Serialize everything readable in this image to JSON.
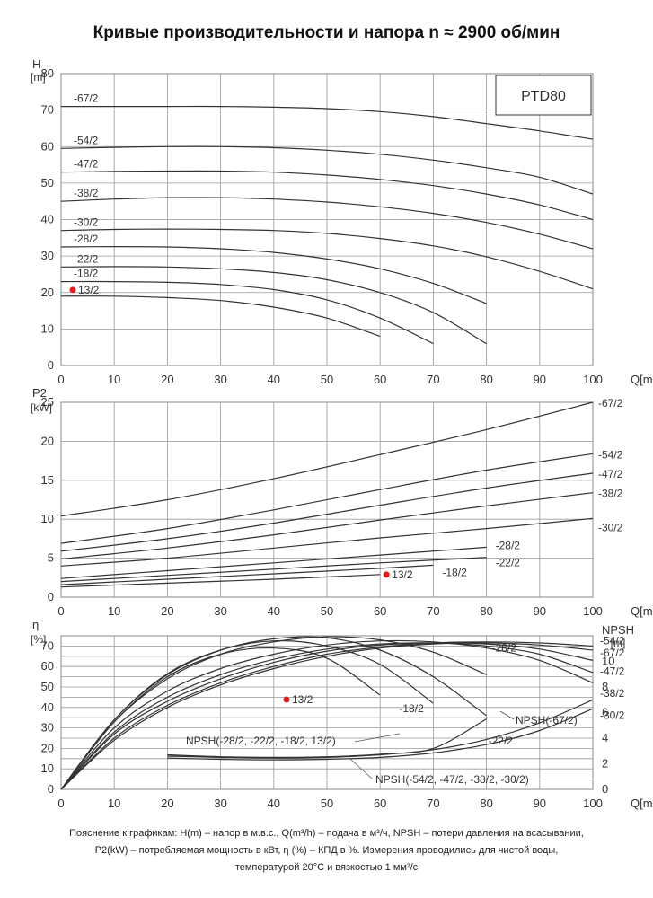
{
  "page": {
    "title": "Кривые производительности и напора n ≈ 2900 об/мин",
    "caption_line1": "Пояснение к графикам: H(m) – напор в м.в.с., Q(m³/h) – подача в м³/ч, NPSH – потери давления на всасывании,",
    "caption_line2": "P2(kW) – потребляемая мощность в кВт, η (%) – КПД в %. Измерения проводились для чистой воды,",
    "caption_line3": "температурой 20°C и вязкостью 1 мм²/с"
  },
  "colors": {
    "curve": "#333333",
    "grid": "#999999",
    "marker": "#e02020"
  },
  "chart_data": [
    {
      "type": "line",
      "id": "head",
      "model_box": "PTD80",
      "ylabel_line1": "H",
      "ylabel_line2": "[m]",
      "xlabel": "Q[m³/h]",
      "xlim": [
        0,
        100
      ],
      "ylim": [
        0,
        80
      ],
      "xticks": [
        0,
        10,
        20,
        30,
        40,
        50,
        60,
        70,
        80,
        90,
        100
      ],
      "yticks": [
        0,
        10,
        20,
        30,
        40,
        50,
        60,
        70,
        80
      ],
      "grid": true,
      "series": [
        {
          "name": "-67/2",
          "x": [
            0,
            10,
            20,
            30,
            40,
            50,
            60,
            70,
            80,
            90,
            100
          ],
          "y": [
            71,
            71,
            71,
            71,
            70.8,
            70.4,
            69.6,
            68.2,
            66.3,
            64.3,
            62
          ]
        },
        {
          "name": "-54/2",
          "x": [
            0,
            10,
            20,
            30,
            40,
            50,
            60,
            70,
            80,
            90,
            100
          ],
          "y": [
            59.5,
            59.8,
            60,
            60,
            59.7,
            59,
            57.9,
            56.3,
            54.2,
            51.6,
            47
          ]
        },
        {
          "name": "-47/2",
          "x": [
            0,
            10,
            20,
            30,
            40,
            50,
            60,
            70,
            80,
            90,
            100
          ],
          "y": [
            53,
            53.2,
            53.3,
            53.3,
            53,
            52.2,
            51,
            49.3,
            47,
            44,
            40
          ]
        },
        {
          "name": "-38/2",
          "x": [
            0,
            10,
            20,
            30,
            40,
            50,
            60,
            70,
            80,
            90,
            100
          ],
          "y": [
            45,
            45.6,
            46,
            46,
            45.6,
            44.8,
            43.5,
            41.7,
            39.2,
            36,
            32
          ]
        },
        {
          "name": "-30/2",
          "x": [
            0,
            10,
            20,
            30,
            40,
            50,
            60,
            70,
            80,
            90,
            100
          ],
          "y": [
            37,
            37.3,
            37.4,
            37.3,
            37,
            36.2,
            34.8,
            32.8,
            29.8,
            25.8,
            21
          ]
        },
        {
          "name": "-28/2",
          "x": [
            0,
            10,
            20,
            30,
            40,
            50,
            60,
            70,
            80
          ],
          "y": [
            32.5,
            32.6,
            32.5,
            32,
            31,
            29.2,
            26.5,
            22.5,
            17
          ]
        },
        {
          "name": "-22/2",
          "x": [
            0,
            10,
            20,
            30,
            40,
            50,
            60,
            70,
            80
          ],
          "y": [
            27,
            27.1,
            27,
            26.5,
            25.5,
            23.5,
            20,
            14.5,
            6
          ]
        },
        {
          "name": "-18/2",
          "x": [
            0,
            10,
            20,
            30,
            40,
            50,
            60,
            70
          ],
          "y": [
            23,
            23,
            22.8,
            22.2,
            20.8,
            18,
            13,
            6
          ]
        },
        {
          "name": "13/2",
          "x": [
            0,
            10,
            20,
            30,
            40,
            50,
            60
          ],
          "y": [
            19,
            19,
            18.6,
            17.8,
            16,
            13,
            8
          ]
        }
      ]
    },
    {
      "type": "line",
      "id": "power",
      "ylabel_line1": "P2",
      "ylabel_line2": "[kW]",
      "xlabel": "Q[m³/h]",
      "xlim": [
        0,
        100
      ],
      "ylim": [
        0,
        25
      ],
      "xticks": [
        0,
        10,
        20,
        30,
        40,
        50,
        60,
        70,
        80,
        90,
        100
      ],
      "yticks": [
        0,
        5,
        10,
        15,
        20,
        25
      ],
      "grid": true,
      "series": [
        {
          "name": "-67/2",
          "x": [
            0,
            20,
            40,
            60,
            80,
            100
          ],
          "y": [
            10.4,
            12.5,
            15.2,
            18.3,
            21.5,
            25
          ]
        },
        {
          "name": "-54/2",
          "x": [
            0,
            20,
            40,
            60,
            80,
            100
          ],
          "y": [
            6.9,
            8.8,
            11.2,
            13.8,
            16.3,
            18.4
          ]
        },
        {
          "name": "-47/2",
          "x": [
            0,
            20,
            40,
            60,
            80,
            100
          ],
          "y": [
            5.9,
            7.5,
            9.5,
            11.8,
            14,
            15.9
          ]
        },
        {
          "name": "-38/2",
          "x": [
            0,
            20,
            40,
            60,
            80,
            100
          ],
          "y": [
            4.9,
            6.3,
            8,
            9.9,
            11.7,
            13.4
          ]
        },
        {
          "name": "-30/2",
          "x": [
            0,
            20,
            40,
            60,
            80,
            100
          ],
          "y": [
            4,
            5,
            6.3,
            7.6,
            8.8,
            10.1
          ]
        },
        {
          "name": "-28/2",
          "x": [
            0,
            20,
            40,
            60,
            80
          ],
          "y": [
            2.4,
            3.4,
            4.4,
            5.4,
            6.4
          ]
        },
        {
          "name": "-22/2",
          "x": [
            0,
            20,
            40,
            60,
            80
          ],
          "y": [
            2,
            2.8,
            3.6,
            4.4,
            5.1
          ]
        },
        {
          "name": "-18/2",
          "x": [
            0,
            20,
            40,
            60,
            70
          ],
          "y": [
            1.6,
            2.3,
            3,
            3.7,
            4.1
          ]
        },
        {
          "name": "13/2",
          "x": [
            0,
            20,
            40,
            60
          ],
          "y": [
            1.3,
            1.8,
            2.3,
            2.9
          ]
        }
      ]
    },
    {
      "type": "line",
      "id": "efficiency",
      "ylabel_line1": "η",
      "ylabel_line2": "[%]",
      "right_label_line1": "NPSH",
      "right_label_line2": "[m]",
      "xlabel": "Q[m³/h]",
      "xlim": [
        0,
        100
      ],
      "ylim": [
        0,
        75
      ],
      "right_ylim": [
        0,
        12
      ],
      "xticks": [
        0,
        10,
        20,
        30,
        40,
        50,
        60,
        70,
        80,
        90,
        100
      ],
      "yticks": [
        0,
        10,
        20,
        30,
        40,
        50,
        60,
        70
      ],
      "right_yticks": [
        0,
        2,
        4,
        6,
        8,
        10
      ],
      "grid": true,
      "series": [
        {
          "name": "-54/2",
          "x": [
            0,
            10,
            20,
            30,
            40,
            50,
            60,
            70,
            80,
            90,
            100
          ],
          "y": [
            0,
            25,
            41,
            52,
            60,
            66,
            69.5,
            71.5,
            72,
            71.5,
            70
          ]
        },
        {
          "name": "-67/2",
          "x": [
            0,
            10,
            20,
            30,
            40,
            50,
            60,
            70,
            80,
            90,
            100
          ],
          "y": [
            0,
            24,
            40,
            51,
            59,
            65,
            69,
            71,
            71.5,
            70.5,
            68
          ]
        },
        {
          "name": "-47/2",
          "x": [
            0,
            10,
            20,
            30,
            40,
            50,
            60,
            70,
            80,
            90,
            100
          ],
          "y": [
            0,
            27,
            43,
            54,
            62,
            67.5,
            70.5,
            71.5,
            71,
            68.5,
            63
          ]
        },
        {
          "name": "-38/2",
          "x": [
            0,
            10,
            20,
            30,
            40,
            50,
            60,
            70,
            80,
            90,
            100
          ],
          "y": [
            0,
            28,
            45,
            56,
            63.5,
            68.5,
            71,
            71.5,
            70,
            66,
            57
          ]
        },
        {
          "name": "-30/2",
          "x": [
            0,
            10,
            20,
            30,
            40,
            50,
            60,
            70,
            80,
            90,
            100
          ],
          "y": [
            0,
            30,
            48,
            59,
            66,
            70.5,
            72.5,
            72,
            69,
            63,
            52
          ]
        },
        {
          "name": "-28/2",
          "x": [
            0,
            10,
            20,
            30,
            40,
            50,
            60,
            70,
            80
          ],
          "y": [
            0,
            33,
            54,
            66,
            72,
            74.5,
            73,
            67,
            56
          ]
        },
        {
          "name": "-22/2",
          "x": [
            0,
            10,
            20,
            30,
            40,
            50,
            60,
            70,
            80
          ],
          "y": [
            0,
            34,
            56,
            68,
            73.5,
            74,
            68,
            55,
            36
          ]
        },
        {
          "name": "-18/2",
          "x": [
            0,
            10,
            20,
            30,
            40,
            50,
            60,
            70
          ],
          "y": [
            0,
            34,
            56.5,
            68,
            72.5,
            70,
            61,
            42
          ]
        },
        {
          "name": "13/2",
          "x": [
            0,
            10,
            20,
            30,
            40,
            50,
            60
          ],
          "y": [
            0,
            33,
            55,
            66,
            69,
            64,
            46
          ]
        },
        {
          "name": "NPSH(-28/2, -22/2, -18/2, 13/2)",
          "axis": "right",
          "x": [
            20,
            30,
            40,
            50,
            60,
            70,
            80
          ],
          "y": [
            2.7,
            2.55,
            2.5,
            2.55,
            2.75,
            3.2,
            5.5
          ]
        },
        {
          "name": "NPSH(-54/2, -47/2, -38/2, -30/2)",
          "axis": "right",
          "x": [
            20,
            30,
            40,
            50,
            60,
            70,
            80,
            90,
            100
          ],
          "y": [
            2.45,
            2.35,
            2.3,
            2.35,
            2.5,
            2.85,
            3.5,
            4.6,
            6.3
          ]
        },
        {
          "name": "NPSH(-67/2)",
          "axis": "right",
          "x": [
            20,
            30,
            40,
            50,
            60,
            70,
            80,
            90,
            100
          ],
          "y": [
            2.6,
            2.5,
            2.45,
            2.5,
            2.7,
            3.1,
            3.9,
            5.2,
            7
          ]
        }
      ]
    }
  ]
}
